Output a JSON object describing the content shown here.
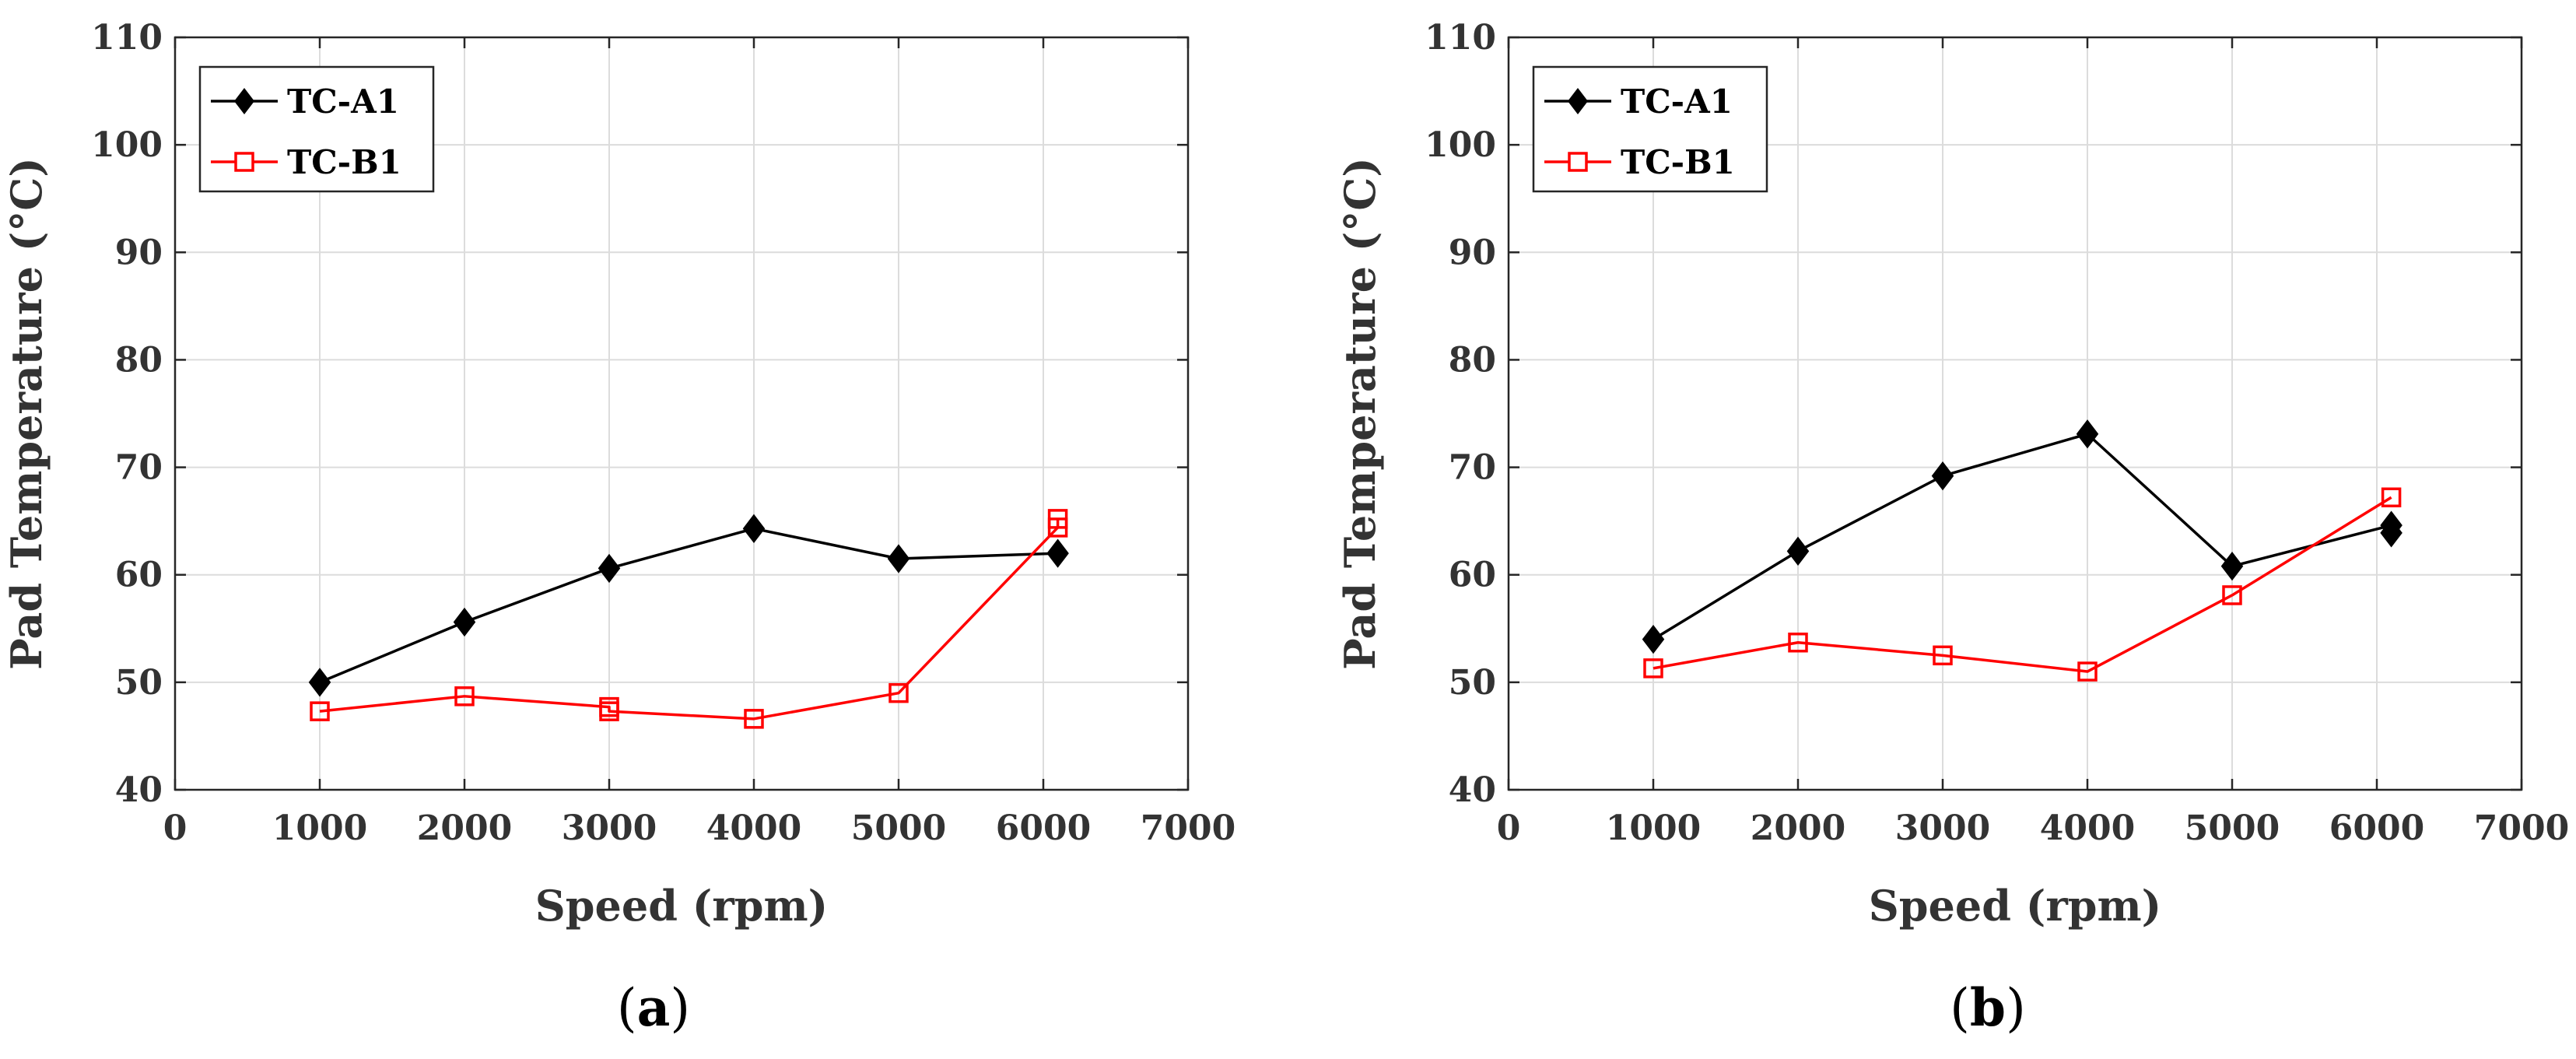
{
  "chart_data": [
    {
      "type": "line",
      "panel": "a",
      "caption_open": "(",
      "caption_letter": "a",
      "caption_close": ")",
      "xlabel": "Speed (rpm)",
      "ylabel": "Pad Temperature (°C)",
      "xlim": [
        0,
        7000
      ],
      "ylim": [
        40,
        110
      ],
      "xticks": [
        "0",
        "1000",
        "2000",
        "3000",
        "4000",
        "5000",
        "6000",
        "7000"
      ],
      "yticks": [
        "40",
        "50",
        "60",
        "70",
        "80",
        "90",
        "100",
        "110"
      ],
      "grid": true,
      "legend_position": "top-left",
      "series": [
        {
          "name": "TC-A1",
          "color": "#000000",
          "marker": "diamond-filled",
          "points": [
            [
              1000,
              50.0
            ],
            [
              2000,
              55.6
            ],
            [
              3000,
              60.6
            ],
            [
              4000,
              64.3
            ],
            [
              5000,
              61.5
            ],
            [
              6100,
              62.0
            ]
          ]
        },
        {
          "name": "TC-B1",
          "color": "#ff0000",
          "marker": "square-open",
          "points": [
            [
              1000,
              47.3
            ],
            [
              2000,
              48.7
            ],
            [
              3000,
              47.7
            ],
            [
              3000,
              47.3
            ],
            [
              4000,
              46.6
            ],
            [
              5000,
              49.0
            ],
            [
              6100,
              64.4
            ],
            [
              6100,
              65.2
            ]
          ]
        }
      ]
    },
    {
      "type": "line",
      "panel": "b",
      "caption_open": "(",
      "caption_letter": "b",
      "caption_close": ")",
      "xlabel": "Speed (rpm)",
      "ylabel": "Pad Temperature (°C)",
      "xlim": [
        0,
        7000
      ],
      "ylim": [
        40,
        110
      ],
      "xticks": [
        "0",
        "1000",
        "2000",
        "3000",
        "4000",
        "5000",
        "6000",
        "7000"
      ],
      "yticks": [
        "40",
        "50",
        "60",
        "70",
        "80",
        "90",
        "100",
        "110"
      ],
      "grid": true,
      "legend_position": "top-left",
      "series": [
        {
          "name": "TC-A1",
          "color": "#000000",
          "marker": "diamond-filled",
          "points": [
            [
              1000,
              54.0
            ],
            [
              2000,
              62.2
            ],
            [
              3000,
              69.2
            ],
            [
              4000,
              73.1
            ],
            [
              5000,
              60.8
            ],
            [
              6100,
              64.6
            ],
            [
              6100,
              63.9
            ]
          ]
        },
        {
          "name": "TC-B1",
          "color": "#ff0000",
          "marker": "square-open",
          "points": [
            [
              1000,
              51.3
            ],
            [
              2000,
              53.7
            ],
            [
              3000,
              52.5
            ],
            [
              4000,
              51.0
            ],
            [
              5000,
              58.1
            ],
            [
              6100,
              67.2
            ]
          ]
        }
      ]
    }
  ]
}
